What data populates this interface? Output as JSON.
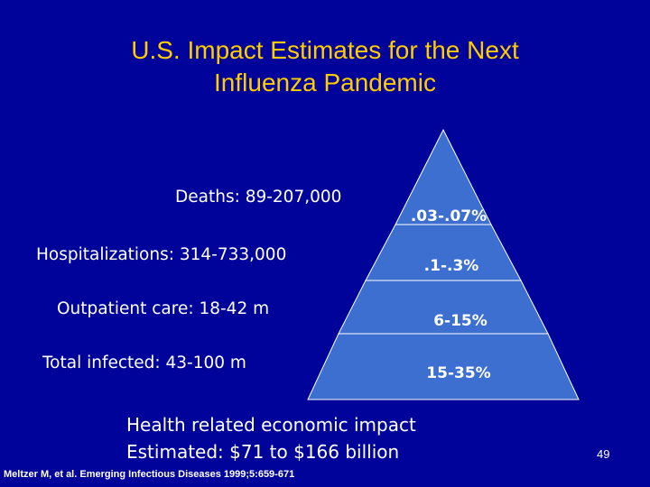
{
  "slide": {
    "title_line1": "U.S. Impact Estimates for the Next",
    "title_line2": "Influenza Pandemic",
    "colors": {
      "background": "#000399",
      "title": "#FFCC00",
      "pyramid_fill": "#3D6FD1",
      "text": "#FFFFFF"
    }
  },
  "stats": {
    "deaths": "Deaths: 89-207,000",
    "hospitalizations": "Hospitalizations: 314-733,000",
    "outpatient": "Outpatient care: 18-42 m",
    "infected": "Total infected: 43-100 m"
  },
  "pyramid": {
    "tiers": [
      {
        "label": ".03-.07%"
      },
      {
        "label": ".1-.3%"
      },
      {
        "label": "6-15%"
      },
      {
        "label": "15-35%"
      }
    ]
  },
  "economic": {
    "line1": "Health related economic impact",
    "line2": "Estimated: $71 to $166 billion"
  },
  "citation": "Meltzer M, et al. Emerging Infectious Diseases 1999;5:659-671",
  "page_number": "49"
}
